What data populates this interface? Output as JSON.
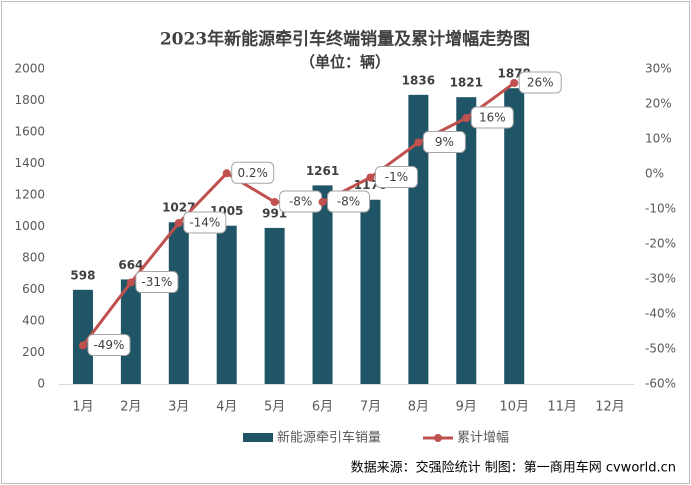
{
  "chart_data": {
    "type": "combo",
    "title": "2023年新能源牵引车终端销量及累计增幅走势图",
    "subtitle": "（单位：辆）",
    "categories": [
      "1月",
      "2月",
      "3月",
      "4月",
      "5月",
      "6月",
      "7月",
      "8月",
      "9月",
      "10月",
      "11月",
      "12月"
    ],
    "series": [
      {
        "name": "新能源牵引车销量",
        "type": "bar",
        "color": "#1f5566",
        "values": [
          598,
          664,
          1027,
          1005,
          991,
          1261,
          1170,
          1836,
          1821,
          1878,
          null,
          null
        ]
      },
      {
        "name": "累计增幅",
        "type": "line",
        "axis": "y2",
        "color": "#c0504d",
        "values": [
          -49,
          -31,
          -14,
          0.2,
          -8,
          -8,
          -1,
          9,
          16,
          26,
          null,
          null
        ],
        "value_labels": [
          "-49%",
          "-31%",
          "-14%",
          "0.2%",
          "-8%",
          "-8%",
          "-1%",
          "9%",
          "16%",
          "26%",
          null,
          null
        ]
      }
    ],
    "ylim": [
      0,
      2000
    ],
    "yticks": [
      0,
      200,
      400,
      600,
      800,
      1000,
      1200,
      1400,
      1600,
      1800,
      2000
    ],
    "y2lim": [
      -60,
      30
    ],
    "y2ticks": [
      {
        "value": -60,
        "label": "-60%"
      },
      {
        "value": -50,
        "label": "-50%"
      },
      {
        "value": -40,
        "label": "-40%"
      },
      {
        "value": -30,
        "label": "-30%"
      },
      {
        "value": -20,
        "label": "-20%"
      },
      {
        "value": -10,
        "label": "-10%"
      },
      {
        "value": 0,
        "label": "0%"
      },
      {
        "value": 10,
        "label": "10%"
      },
      {
        "value": 20,
        "label": "20%"
      },
      {
        "value": 30,
        "label": "30%"
      }
    ],
    "grid": false,
    "legend": "bottom",
    "source": "数据来源：交强险统计  制图：第一商用车网 cvworld.cn"
  }
}
